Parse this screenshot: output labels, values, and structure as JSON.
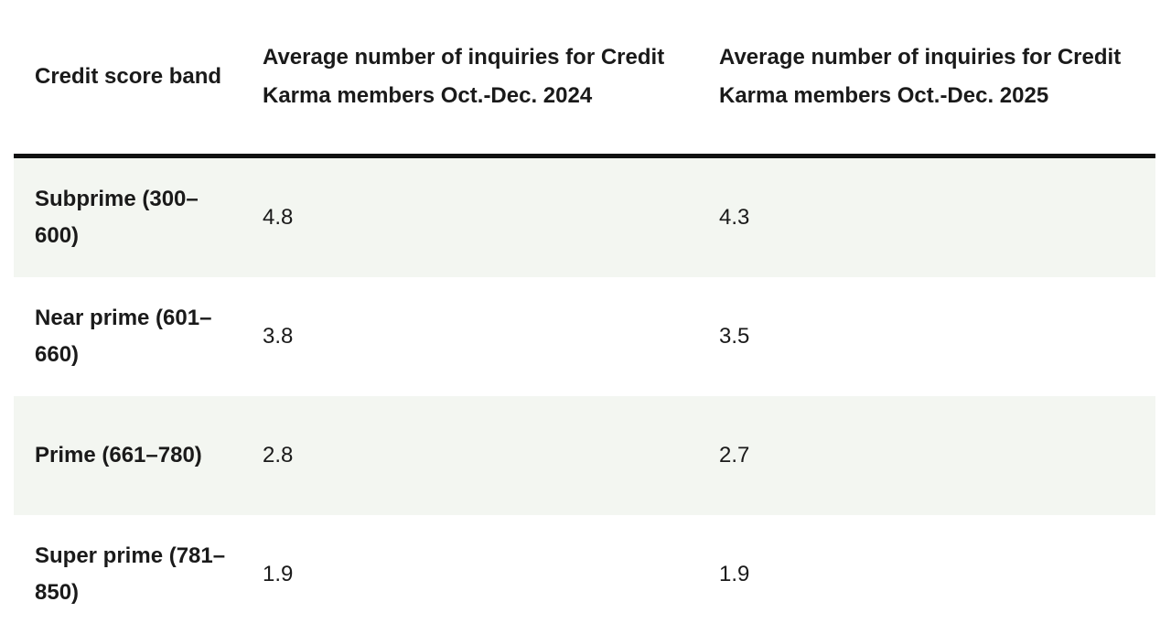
{
  "table": {
    "headers": [
      "Credit score band",
      "Average number of inquiries for Credit Karma members Oct.-Dec. 2024",
      "Average number of inquiries for Credit Karma members Oct.-Dec. 2025"
    ],
    "rows": [
      [
        "Subprime (300–600)",
        4.8,
        4.3
      ],
      [
        "Near prime (601–660)",
        3.8,
        3.5
      ],
      [
        "Prime (661–780)",
        2.8,
        2.7
      ],
      [
        "Super prime (781–850)",
        1.9,
        1.9
      ]
    ]
  }
}
